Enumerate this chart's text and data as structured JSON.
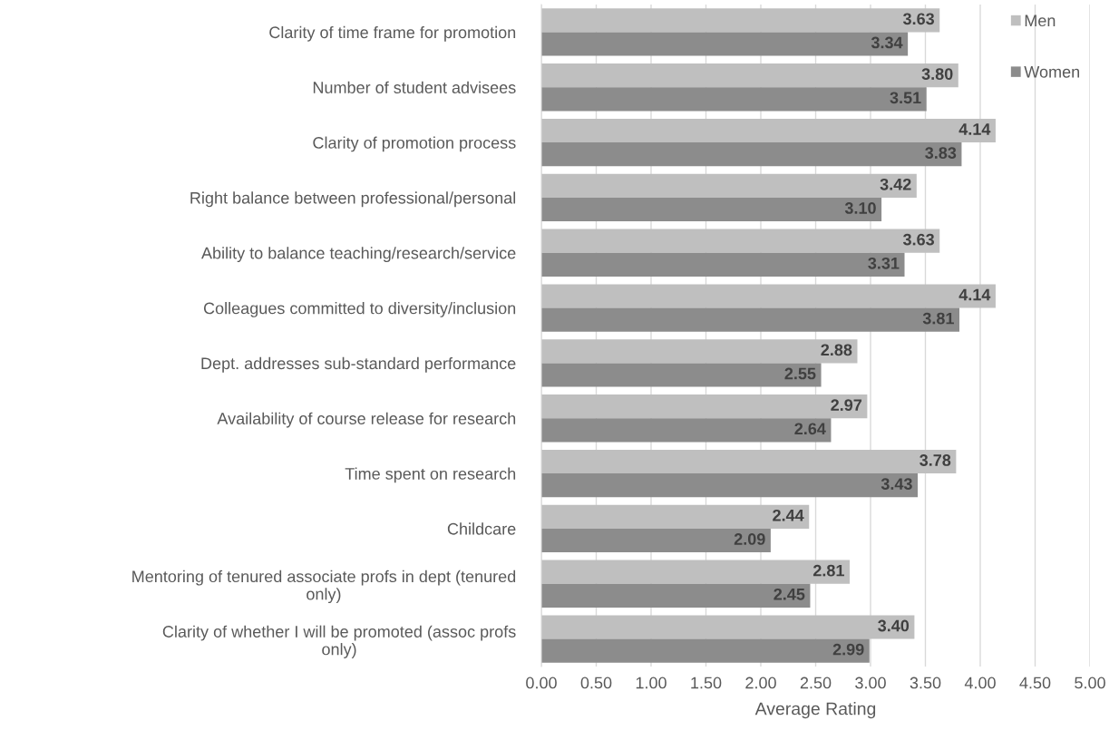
{
  "chart_data": {
    "type": "bar",
    "orientation": "horizontal",
    "xlabel": "Average Rating",
    "categories": [
      "Clarity of time frame for promotion",
      "Number of student advisees",
      "Clarity of promotion process",
      "Right balance between professional/personal",
      "Ability to balance teaching/research/service",
      "Colleagues committed to diversity/inclusion",
      "Dept. addresses sub-standard performance",
      "Availability of course release for research",
      "Time spent on research",
      "Childcare",
      "Mentoring of tenured associate profs in dept (tenured\nonly)",
      "Clarity of whether I will be promoted (assoc profs\nonly)"
    ],
    "series": [
      {
        "name": "Men",
        "color": "#bfbfbf",
        "values": [
          3.63,
          3.8,
          4.14,
          3.42,
          3.63,
          4.14,
          2.88,
          2.97,
          3.78,
          2.44,
          2.81,
          3.4
        ],
        "value_labels": [
          "3.63",
          "3.80",
          "4.14",
          "3.42",
          "3.63",
          "4.14",
          "2.88",
          "2.97",
          "3.78",
          "2.44",
          "2.81",
          "3.40"
        ]
      },
      {
        "name": "Women",
        "color": "#8c8c8c",
        "values": [
          3.34,
          3.51,
          3.83,
          3.1,
          3.31,
          3.81,
          2.55,
          2.64,
          3.43,
          2.09,
          2.45,
          2.99
        ],
        "value_labels": [
          "3.34",
          "3.51",
          "3.83",
          "3.10",
          "3.31",
          "3.81",
          "2.55",
          "2.64",
          "3.43",
          "2.09",
          "2.45",
          "2.99"
        ]
      }
    ],
    "xlim": [
      0,
      5
    ],
    "xticks": [
      {
        "value": 0,
        "label": "0.00"
      },
      {
        "value": 0.5,
        "label": "0.50"
      },
      {
        "value": 1,
        "label": "1.00"
      },
      {
        "value": 1.5,
        "label": "1.50"
      },
      {
        "value": 2,
        "label": "2.00"
      },
      {
        "value": 2.5,
        "label": "2.50"
      },
      {
        "value": 3,
        "label": "3.00"
      },
      {
        "value": 3.5,
        "label": "3.50"
      },
      {
        "value": 4,
        "label": "4.00"
      },
      {
        "value": 4.5,
        "label": "4.50"
      },
      {
        "value": 5,
        "label": "5.00"
      }
    ],
    "grid": "x",
    "legend": "top right"
  }
}
